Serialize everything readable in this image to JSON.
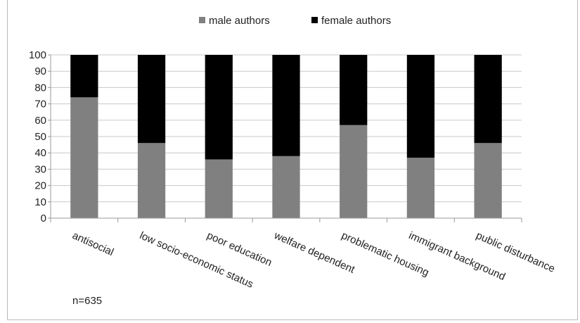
{
  "chart_data": {
    "type": "bar",
    "stacked": true,
    "categories": [
      "antisocial",
      "low socio-economic status",
      "poor education",
      "welfare dependent",
      "problematic housing",
      "immigrant background",
      "public disturbance"
    ],
    "series": [
      {
        "name": "male authors",
        "color": "#808080",
        "values": [
          74,
          46,
          36,
          38,
          57,
          37,
          46
        ]
      },
      {
        "name": "female authors",
        "color": "#000000",
        "values": [
          26,
          54,
          64,
          62,
          43,
          63,
          54
        ]
      }
    ],
    "ylim": [
      0,
      100
    ],
    "yticks": [
      0,
      10,
      20,
      30,
      40,
      50,
      60,
      70,
      80,
      90,
      100
    ],
    "grid": true,
    "legend_position": "top",
    "annotation": "n=635"
  }
}
